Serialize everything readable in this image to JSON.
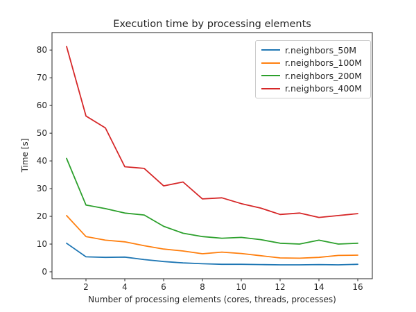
{
  "chart_data": {
    "type": "line",
    "title": "Execution time by processing elements",
    "xlabel": "Number of processing elements (cores, threads, processes)",
    "ylabel": "Time [s]",
    "x": [
      1,
      2,
      3,
      4,
      5,
      6,
      7,
      8,
      9,
      10,
      11,
      12,
      13,
      14,
      15,
      16
    ],
    "series": [
      {
        "name": "r.neighbors_50M",
        "color": "#1f77b4",
        "values": [
          10.3,
          5.4,
          5.2,
          5.3,
          4.4,
          3.7,
          3.2,
          2.9,
          2.7,
          2.7,
          2.6,
          2.5,
          2.5,
          2.6,
          2.5,
          2.7
        ]
      },
      {
        "name": "r.neighbors_100M",
        "color": "#ff7f0e",
        "values": [
          20.3,
          12.7,
          11.4,
          10.8,
          9.4,
          8.2,
          7.5,
          6.5,
          7.1,
          6.6,
          5.8,
          5.0,
          4.9,
          5.2,
          5.9,
          6.0
        ]
      },
      {
        "name": "r.neighbors_200M",
        "color": "#2ca02c",
        "values": [
          40.9,
          24.1,
          22.8,
          21.2,
          20.5,
          16.4,
          13.9,
          12.7,
          12.1,
          12.4,
          11.6,
          10.3,
          10.0,
          11.4,
          10.0,
          10.3
        ]
      },
      {
        "name": "r.neighbors_400M",
        "color": "#d62728",
        "values": [
          81.3,
          56.2,
          51.9,
          37.9,
          37.3,
          31.0,
          32.4,
          26.3,
          26.7,
          24.6,
          23.0,
          20.7,
          21.2,
          19.6,
          20.3,
          21.0
        ]
      }
    ],
    "xticks": [
      2,
      4,
      6,
      8,
      10,
      12,
      14,
      16
    ],
    "yticks": [
      0,
      10,
      20,
      30,
      40,
      50,
      60,
      70,
      80
    ],
    "xlim": [
      0.25,
      16.75
    ],
    "ylim": [
      -2.5,
      86.3
    ],
    "grid": false,
    "legend_position": "upper right"
  }
}
